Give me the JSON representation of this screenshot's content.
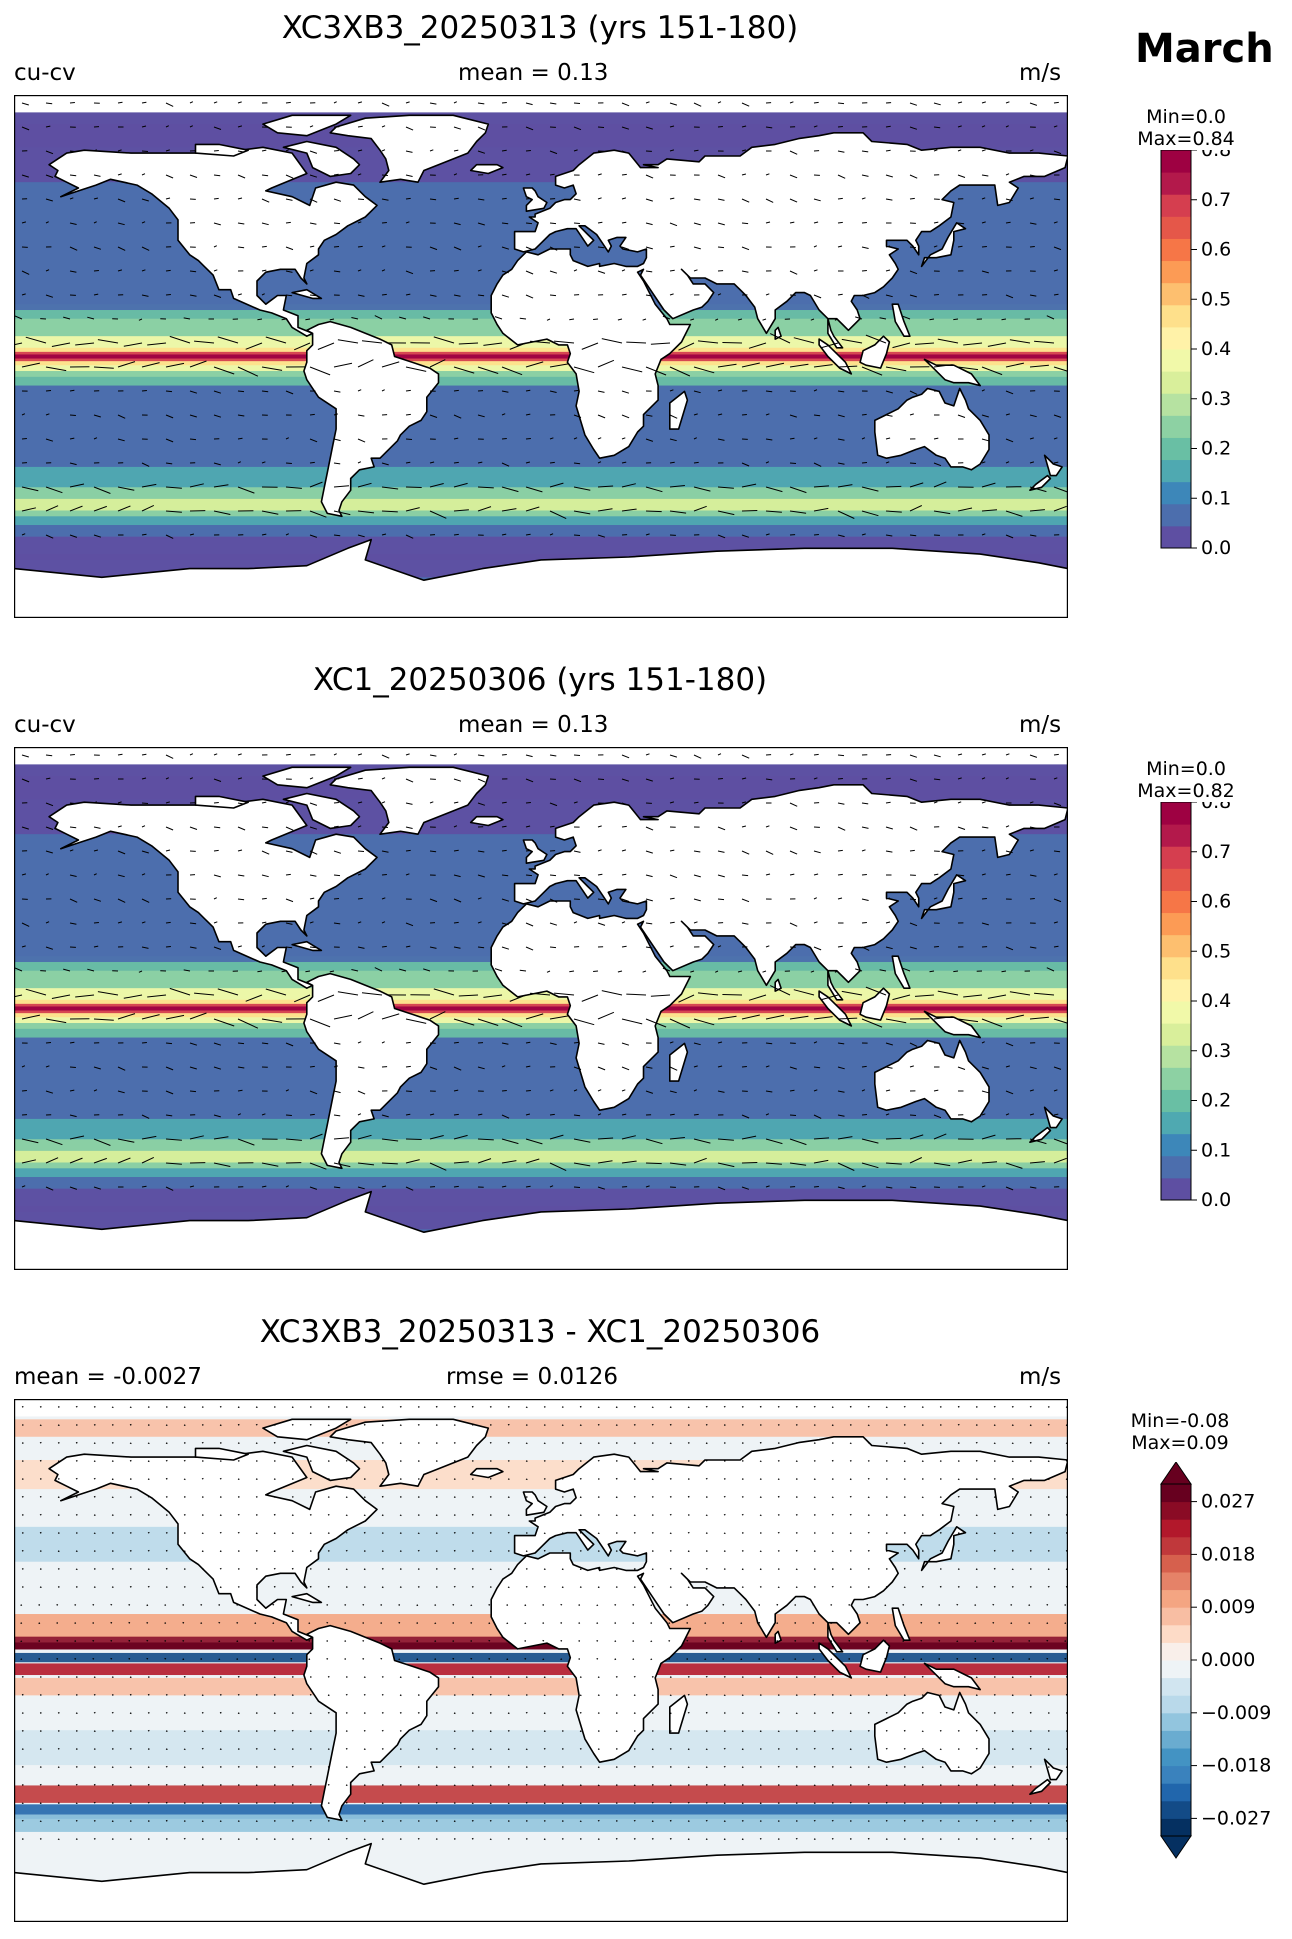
{
  "month": "March",
  "units": "m/s",
  "panels": [
    {
      "title": "XC3XB3_20250313 (yrs 151-180)",
      "left_label": "cu-cv",
      "center_label": "mean = 0.13",
      "right_label": "m/s",
      "minmax": [
        "Min=0.0",
        "Max=0.84"
      ],
      "colorbar": {
        "ticks": [
          "0.0",
          "0.1",
          "0.2",
          "0.3",
          "0.4",
          "0.5",
          "0.6",
          "0.7",
          "0.8"
        ],
        "colors": [
          "#5e4fa2",
          "#4c6ead",
          "#3d87b9",
          "#4fa9b1",
          "#69bfa4",
          "#8dd1a3",
          "#b6e2a1",
          "#d9ef9b",
          "#f1f9a9",
          "#fff2a8",
          "#fee08b",
          "#fdbf6f",
          "#fc9b55",
          "#f67647",
          "#e55749",
          "#d53e4f",
          "#b3194b",
          "#9e0142"
        ]
      }
    },
    {
      "title": "XC1_20250306 (yrs 151-180)",
      "left_label": "cu-cv",
      "center_label": "mean = 0.13",
      "right_label": "m/s",
      "minmax": [
        "Min=0.0",
        "Max=0.82"
      ],
      "colorbar": {
        "ticks": [
          "0.0",
          "0.1",
          "0.2",
          "0.3",
          "0.4",
          "0.5",
          "0.6",
          "0.7",
          "0.8"
        ],
        "colors": [
          "#5e4fa2",
          "#4c6ead",
          "#3d87b9",
          "#4fa9b1",
          "#69bfa4",
          "#8dd1a3",
          "#b6e2a1",
          "#d9ef9b",
          "#f1f9a9",
          "#fff2a8",
          "#fee08b",
          "#fdbf6f",
          "#fc9b55",
          "#f67647",
          "#e55749",
          "#d53e4f",
          "#b3194b",
          "#9e0142"
        ]
      }
    },
    {
      "title": "XC3XB3_20250313 - XC1_20250306",
      "left_label": "mean = -0.0027",
      "center_label": "rmse = 0.0126",
      "right_label": "m/s",
      "minmax": [
        "Min=-0.08",
        "Max=0.09"
      ],
      "colorbar": {
        "ticks": [
          "0.027",
          "0.018",
          "0.009",
          "0.000",
          "−0.009",
          "−0.018",
          "−0.027"
        ],
        "colors": [
          "#053061",
          "#134b87",
          "#2166ac",
          "#3a82bd",
          "#4393c3",
          "#6aacd0",
          "#92c5de",
          "#b9d9ea",
          "#d1e5f0",
          "#eef3f6",
          "#f9efea",
          "#fddbc7",
          "#f8bea3",
          "#f4a582",
          "#e58268",
          "#d6604d",
          "#c0383b",
          "#b2182b",
          "#8a0b25",
          "#67001f"
        ]
      }
    }
  ],
  "chart_data": [
    {
      "type": "heatmap",
      "title": "XC3XB3_20250313 (yrs 151-180)",
      "variable": "cu-cv",
      "units": "m/s",
      "mean": 0.13,
      "min": 0.0,
      "max": 0.84,
      "colorbar_range": [
        0.0,
        0.8
      ],
      "colorbar_ticks": [
        0.0,
        0.1,
        0.2,
        0.3,
        0.4,
        0.5,
        0.6,
        0.7,
        0.8
      ],
      "overlay": "current vectors"
    },
    {
      "type": "heatmap",
      "title": "XC1_20250306 (yrs 151-180)",
      "variable": "cu-cv",
      "units": "m/s",
      "mean": 0.13,
      "min": 0.0,
      "max": 0.82,
      "colorbar_range": [
        0.0,
        0.8
      ],
      "colorbar_ticks": [
        0.0,
        0.1,
        0.2,
        0.3,
        0.4,
        0.5,
        0.6,
        0.7,
        0.8
      ],
      "overlay": "current vectors"
    },
    {
      "type": "heatmap",
      "title": "XC3XB3_20250313 - XC1_20250306",
      "units": "m/s",
      "mean": -0.0027,
      "rmse": 0.0126,
      "min": -0.08,
      "max": 0.09,
      "colorbar_range": [
        -0.03,
        0.03
      ],
      "colorbar_ticks": [
        -0.027,
        -0.018,
        -0.009,
        0.0,
        0.009,
        0.018,
        0.027
      ],
      "colorbar_extend": "both"
    }
  ]
}
